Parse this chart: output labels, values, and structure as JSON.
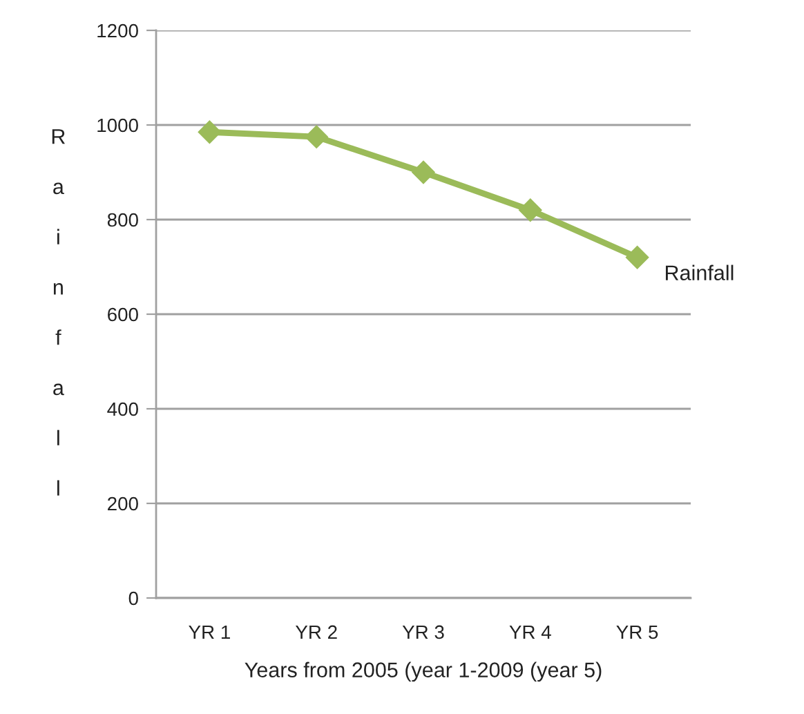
{
  "chart_data": {
    "type": "line",
    "xlabel": "Years from 2005 (year 1-2009 (year 5)",
    "ylabel": "Rainfall",
    "categories": [
      "YR 1",
      "YR 2",
      "YR 3",
      "YR 4",
      "YR 5"
    ],
    "series": [
      {
        "name": "Rainfall",
        "color": "#9bbb59",
        "values": [
          985,
          975,
          900,
          820,
          720
        ]
      }
    ],
    "ylim": [
      0,
      1200
    ],
    "yticks": [
      0,
      200,
      400,
      600,
      800,
      1000,
      1200
    ],
    "grid": "y",
    "marker": "diamond",
    "line_style": "solid"
  }
}
